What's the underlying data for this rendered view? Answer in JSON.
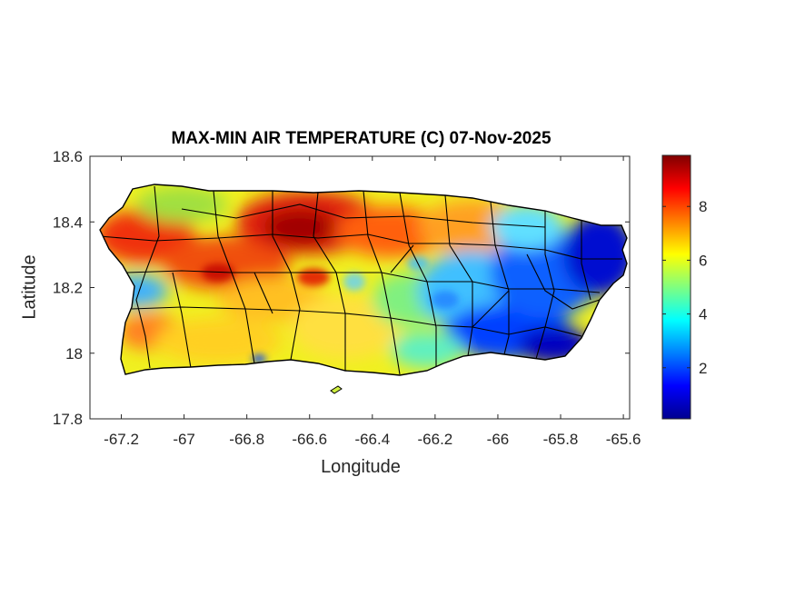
{
  "title": "MAX-MIN AIR TEMPERATURE (C) 07-Nov-2025",
  "map": {
    "region": "Puerto Rico",
    "xlabel": "Longitude",
    "ylabel": "Latitude",
    "xlim": [
      -67.3,
      -65.58
    ],
    "ylim": [
      17.8,
      18.6
    ],
    "xticks": [
      "-67.2",
      "-67",
      "-66.8",
      "-66.6",
      "-66.4",
      "-66.2",
      "-66",
      "-65.8",
      "-65.6"
    ],
    "xtick_values": [
      -67.2,
      -67.0,
      -66.8,
      -66.6,
      -66.4,
      -66.2,
      -66.0,
      -65.8,
      -65.6
    ],
    "yticks": [
      "18.6",
      "18.4",
      "18.2",
      "18",
      "17.8"
    ],
    "ytick_values": [
      18.6,
      18.4,
      18.2,
      18.0,
      17.8
    ],
    "colormap": "jet",
    "boundary_color": "#000000"
  },
  "colorbar": {
    "ticks": [
      "8",
      "6",
      "4",
      "2"
    ],
    "tick_values": [
      8,
      6,
      4,
      2
    ],
    "range": [
      0.1,
      9.9
    ]
  }
}
